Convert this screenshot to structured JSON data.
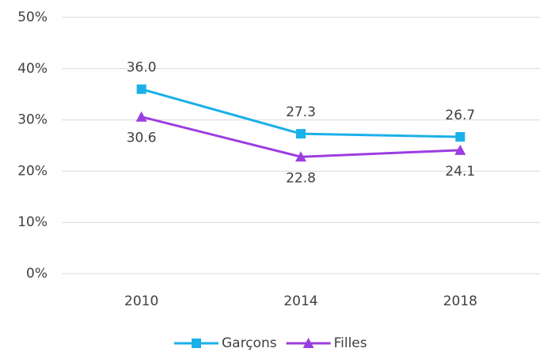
{
  "chart_data": {
    "type": "line",
    "categories": [
      "2010",
      "2014",
      "2018"
    ],
    "series": [
      {
        "name": "Garçons",
        "color": "#1ab0e8",
        "marker": "square",
        "label_position": "above",
        "values": [
          36.0,
          27.3,
          26.7
        ],
        "value_labels": [
          "36.0",
          "27.3",
          "26.7"
        ]
      },
      {
        "name": "Filles",
        "color": "#9b3ee0",
        "marker": "triangle",
        "label_position": "below",
        "values": [
          30.6,
          22.8,
          24.1
        ],
        "value_labels": [
          "30.6",
          "22.8",
          "24.1"
        ]
      }
    ],
    "ylim": [
      0,
      50
    ],
    "yticks": [
      {
        "value": 0,
        "label": "0%"
      },
      {
        "value": 10,
        "label": "10%"
      },
      {
        "value": 20,
        "label": "20%"
      },
      {
        "value": 30,
        "label": "30%"
      },
      {
        "value": 40,
        "label": "40%"
      },
      {
        "value": 50,
        "label": "50%"
      }
    ],
    "grid": true,
    "legend": "bottom"
  }
}
